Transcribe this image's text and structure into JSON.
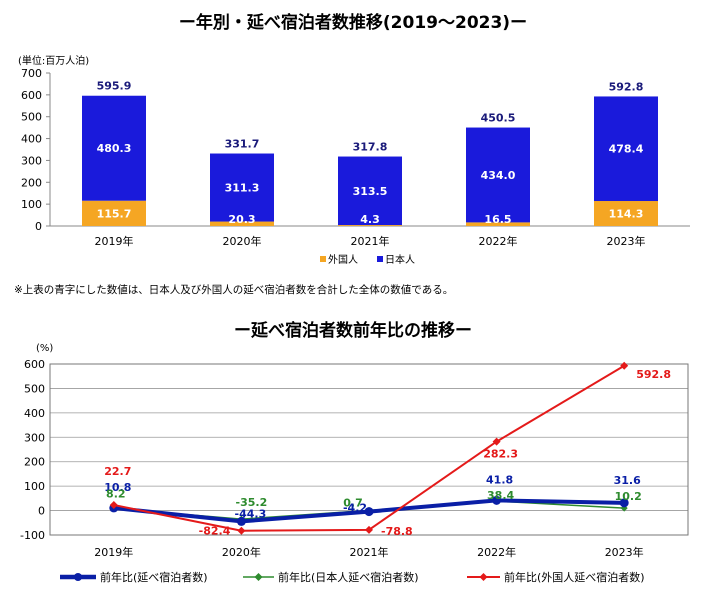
{
  "titles": {
    "top": "ー年別・延べ宿泊者数推移(2019～2023)ー",
    "bottom": "ー延べ宿泊者数前年比の推移ー",
    "note": "※上表の青字にした数値は、日本人及び外国人の延べ宿泊者数を合計した全体の数値である。"
  },
  "colors": {
    "japanese": "#1a1adb",
    "foreign": "#f5a623",
    "total_label": "#1a1a7a",
    "total_line": "#0a1fa6",
    "japanese_line": "#2e8b2e",
    "foreign_line": "#e41a1a"
  },
  "chart_data": [
    {
      "type": "bar",
      "stacked": true,
      "unit_label": "(単位:百万人泊)",
      "categories": [
        "2019年",
        "2020年",
        "2021年",
        "2022年",
        "2023年"
      ],
      "series": [
        {
          "name": "外国人",
          "values": [
            115.7,
            20.3,
            4.3,
            16.5,
            114.3
          ]
        },
        {
          "name": "日本人",
          "values": [
            480.3,
            311.3,
            313.5,
            434.0,
            478.4
          ]
        }
      ],
      "totals": [
        595.9,
        331.7,
        317.8,
        450.5,
        592.8
      ],
      "ylim": [
        0,
        700
      ],
      "yticks": [
        0,
        100,
        200,
        300,
        400,
        500,
        600,
        700
      ],
      "legend": "bottom-center",
      "grid": false
    },
    {
      "type": "line",
      "unit_label": "(%)",
      "categories": [
        "2019年",
        "2020年",
        "2021年",
        "2022年",
        "2023年"
      ],
      "series": [
        {
          "name": "前年比(延べ宿泊者数)",
          "values": [
            10.8,
            -44.3,
            -4.2,
            41.8,
            31.6
          ]
        },
        {
          "name": "前年比(日本人延べ宿泊者数)",
          "values": [
            8.2,
            -35.2,
            0.7,
            38.4,
            10.2
          ]
        },
        {
          "name": "前年比(外国人延べ宿泊者数)",
          "values": [
            22.7,
            -82.4,
            -78.8,
            282.3,
            592.8
          ]
        }
      ],
      "ylim": [
        -100,
        600
      ],
      "yticks": [
        -100,
        0,
        100,
        200,
        300,
        400,
        500,
        600
      ],
      "legend": "bottom",
      "grid": true
    }
  ]
}
